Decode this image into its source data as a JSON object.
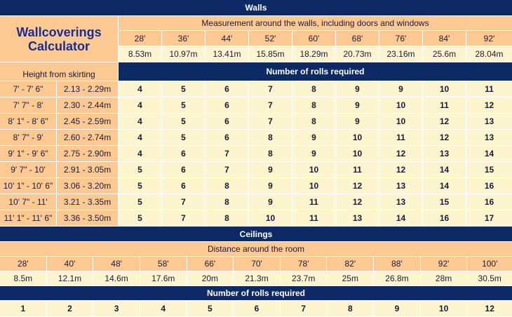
{
  "walls": {
    "section_title": "Walls",
    "calculator_title": "Wallcoverings Calculator",
    "measurement_caption": "Measurement around the walls, including doors and windows",
    "feet": [
      "28'",
      "36'",
      "44'",
      "52'",
      "60'",
      "68'",
      "76'",
      "84'",
      "92'"
    ],
    "metres": [
      "8.53m",
      "10.97m",
      "13.41m",
      "15.85m",
      "18.29m",
      "20.73m",
      "23.16m",
      "25.6m",
      "28.04m"
    ],
    "height_label": "Height from skirting",
    "rolls_label": "Number of rolls required",
    "rows": [
      {
        "imperial": "7' - 7' 6\"",
        "metric": "2.13 - 2.29m",
        "rolls": [
          "4",
          "5",
          "6",
          "7",
          "8",
          "9",
          "9",
          "10",
          "11"
        ]
      },
      {
        "imperial": "7' 7\" - 8'",
        "metric": "2.30 - 2.44m",
        "rolls": [
          "4",
          "5",
          "6",
          "7",
          "8",
          "9",
          "10",
          "11",
          "12"
        ]
      },
      {
        "imperial": "8' 1\" - 8' 6\"",
        "metric": "2.45 - 2.59m",
        "rolls": [
          "4",
          "5",
          "6",
          "7",
          "8",
          "9",
          "10",
          "12",
          "13"
        ]
      },
      {
        "imperial": "8' 7\" - 9'",
        "metric": "2.60 - 2.74m",
        "rolls": [
          "4",
          "5",
          "6",
          "8",
          "9",
          "10",
          "11",
          "12",
          "13"
        ]
      },
      {
        "imperial": "9' 1\" - 9' 6\"",
        "metric": "2.75 - 2.90m",
        "rolls": [
          "4",
          "6",
          "7",
          "8",
          "9",
          "10",
          "12",
          "13",
          "14"
        ]
      },
      {
        "imperial": "9' 7\" - 10'",
        "metric": "2.91 - 3.05m",
        "rolls": [
          "5",
          "6",
          "7",
          "9",
          "10",
          "11",
          "12",
          "14",
          "15"
        ]
      },
      {
        "imperial": "10' 1\" - 10' 6\"",
        "metric": "3.06 - 3.20m",
        "rolls": [
          "5",
          "6",
          "8",
          "9",
          "10",
          "12",
          "13",
          "14",
          "16"
        ]
      },
      {
        "imperial": "10' 7\" - 11'",
        "metric": "3.21 - 3.35m",
        "rolls": [
          "5",
          "7",
          "8",
          "9",
          "11",
          "12",
          "13",
          "15",
          "16"
        ]
      },
      {
        "imperial": "11' 1\" - 11' 6\"",
        "metric": "3.36 - 3.50m",
        "rolls": [
          "5",
          "7",
          "8",
          "10",
          "11",
          "13",
          "14",
          "16",
          "17"
        ]
      }
    ]
  },
  "ceilings": {
    "section_title": "Ceilings",
    "distance_caption": "Distance around the room",
    "feet": [
      "28'",
      "40'",
      "48'",
      "58'",
      "66'",
      "70'",
      "78'",
      "82'",
      "88'",
      "92'",
      "100'"
    ],
    "metres": [
      "8.5m",
      "12.1m",
      "14.6m",
      "17.6m",
      "20m",
      "21.3m",
      "23.7m",
      "25m",
      "26.8m",
      "28m",
      "30.5m"
    ],
    "rolls_label": "Number of rolls required",
    "rolls": [
      "1",
      "2",
      "3",
      "4",
      "5",
      "6",
      "7",
      "8",
      "9",
      "10",
      "12"
    ]
  },
  "colors": {
    "navy": "#0e2a66",
    "peach": "#fcc993",
    "cream": "#fdf5ce",
    "title_blue": "#1b2d8c"
  }
}
